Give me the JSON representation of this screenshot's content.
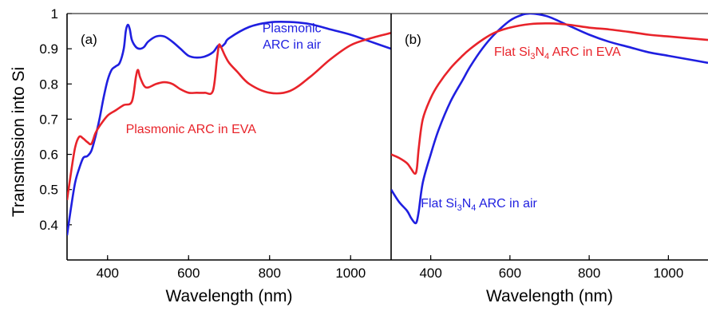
{
  "figure": {
    "ylabel": "Transmission into Si",
    "colors": {
      "blue": "#1f1fe0",
      "red": "#e8232a",
      "axis": "#000000"
    }
  },
  "chart_data": [
    {
      "type": "line",
      "panel_label": "(a)",
      "xlabel": "Wavelength (nm)",
      "ylabel": "Transmission into Si",
      "xlim": [
        300,
        1100
      ],
      "ylim": [
        0.3,
        1.0
      ],
      "xticks": [
        400,
        600,
        800,
        1000
      ],
      "yticks": [
        0.4,
        0.5,
        0.6,
        0.7,
        0.8,
        0.9,
        1
      ],
      "ytick_labels": [
        "0.4",
        "0.5",
        "0.6",
        "0.7",
        "0.8",
        "0.9",
        "1"
      ],
      "grid": false,
      "series": [
        {
          "name": "Plasmonic ARC in air",
          "label_lines": [
            "Plasmonic",
            "ARC in air"
          ],
          "color": "#1f1fe0",
          "x": [
            300,
            310,
            320,
            330,
            340,
            350,
            360,
            370,
            380,
            390,
            400,
            410,
            420,
            430,
            440,
            445,
            450,
            455,
            460,
            470,
            480,
            490,
            500,
            520,
            540,
            560,
            580,
            600,
            620,
            640,
            660,
            670,
            675,
            680,
            690,
            700,
            750,
            800,
            850,
            900,
            950,
            1000,
            1050,
            1100
          ],
          "y": [
            0.37,
            0.45,
            0.52,
            0.56,
            0.59,
            0.595,
            0.61,
            0.65,
            0.7,
            0.76,
            0.81,
            0.84,
            0.85,
            0.86,
            0.9,
            0.95,
            0.968,
            0.955,
            0.925,
            0.905,
            0.9,
            0.905,
            0.92,
            0.935,
            0.935,
            0.92,
            0.9,
            0.88,
            0.875,
            0.878,
            0.89,
            0.905,
            0.91,
            0.905,
            0.915,
            0.93,
            0.962,
            0.975,
            0.976,
            0.97,
            0.955,
            0.94,
            0.92,
            0.9
          ]
        },
        {
          "name": "Plasmonic ARC in EVA",
          "label_lines": [
            "Plasmonic ARC in EVA"
          ],
          "color": "#e8232a",
          "x": [
            300,
            310,
            320,
            330,
            340,
            350,
            360,
            370,
            380,
            400,
            420,
            440,
            460,
            470,
            475,
            480,
            490,
            500,
            520,
            540,
            560,
            580,
            600,
            620,
            640,
            660,
            670,
            675,
            680,
            690,
            700,
            720,
            750,
            800,
            850,
            900,
            950,
            1000,
            1050,
            1100
          ],
          "y": [
            0.47,
            0.55,
            0.62,
            0.65,
            0.645,
            0.635,
            0.63,
            0.66,
            0.68,
            0.71,
            0.725,
            0.74,
            0.75,
            0.82,
            0.84,
            0.82,
            0.795,
            0.79,
            0.8,
            0.805,
            0.8,
            0.785,
            0.775,
            0.775,
            0.775,
            0.78,
            0.87,
            0.91,
            0.905,
            0.88,
            0.86,
            0.835,
            0.8,
            0.775,
            0.78,
            0.82,
            0.87,
            0.91,
            0.93,
            0.945
          ]
        }
      ],
      "annotations": [
        {
          "text": "Plasmonic",
          "x": 855,
          "y": 0.947,
          "color": "#1f1fe0",
          "anchor": "middle"
        },
        {
          "text": "ARC in air",
          "x": 855,
          "y": 0.9,
          "color": "#1f1fe0",
          "anchor": "middle"
        },
        {
          "text": "Plasmonic ARC in EVA",
          "x": 445,
          "y": 0.66,
          "color": "#e8232a",
          "anchor": "start"
        }
      ]
    },
    {
      "type": "line",
      "panel_label": "(b)",
      "xlabel": "Wavelength (nm)",
      "xlim": [
        300,
        1100
      ],
      "ylim": [
        0.3,
        1.0
      ],
      "xticks": [
        400,
        600,
        800,
        1000
      ],
      "grid": false,
      "series": [
        {
          "name": "Flat Si3N4 ARC in air",
          "label_html": [
            "Flat Si",
            "3",
            "N",
            "4",
            " ARC in air"
          ],
          "color": "#1f1fe0",
          "x": [
            300,
            320,
            340,
            350,
            360,
            365,
            370,
            380,
            400,
            420,
            450,
            480,
            500,
            530,
            560,
            600,
            630,
            650,
            670,
            700,
            750,
            800,
            850,
            900,
            950,
            1000,
            1050,
            1100
          ],
          "y": [
            0.5,
            0.465,
            0.44,
            0.42,
            0.405,
            0.41,
            0.44,
            0.52,
            0.6,
            0.67,
            0.75,
            0.81,
            0.85,
            0.9,
            0.94,
            0.98,
            0.996,
            1.0,
            0.998,
            0.99,
            0.965,
            0.94,
            0.92,
            0.905,
            0.89,
            0.88,
            0.87,
            0.86
          ]
        },
        {
          "name": "Flat Si3N4 ARC in EVA",
          "label_html": [
            "Flat Si",
            "3",
            "N",
            "4",
            " ARC in EVA"
          ],
          "color": "#e8232a",
          "x": [
            300,
            320,
            340,
            350,
            360,
            365,
            370,
            380,
            400,
            420,
            450,
            480,
            500,
            530,
            560,
            600,
            650,
            700,
            750,
            800,
            850,
            900,
            950,
            1000,
            1050,
            1100
          ],
          "y": [
            0.6,
            0.59,
            0.575,
            0.56,
            0.545,
            0.56,
            0.62,
            0.7,
            0.76,
            0.8,
            0.845,
            0.88,
            0.9,
            0.925,
            0.945,
            0.96,
            0.97,
            0.972,
            0.968,
            0.96,
            0.955,
            0.948,
            0.94,
            0.935,
            0.93,
            0.925
          ]
        }
      ],
      "annotations": [
        {
          "text_parts": [
            "Flat Si",
            "3",
            "N",
            "4",
            " ARC in EVA"
          ],
          "x": 560,
          "y": 0.88,
          "color": "#e8232a"
        },
        {
          "text_parts": [
            "Flat Si",
            "3",
            "N",
            "4",
            " ARC in air"
          ],
          "x": 375,
          "y": 0.45,
          "color": "#1f1fe0"
        }
      ]
    }
  ]
}
